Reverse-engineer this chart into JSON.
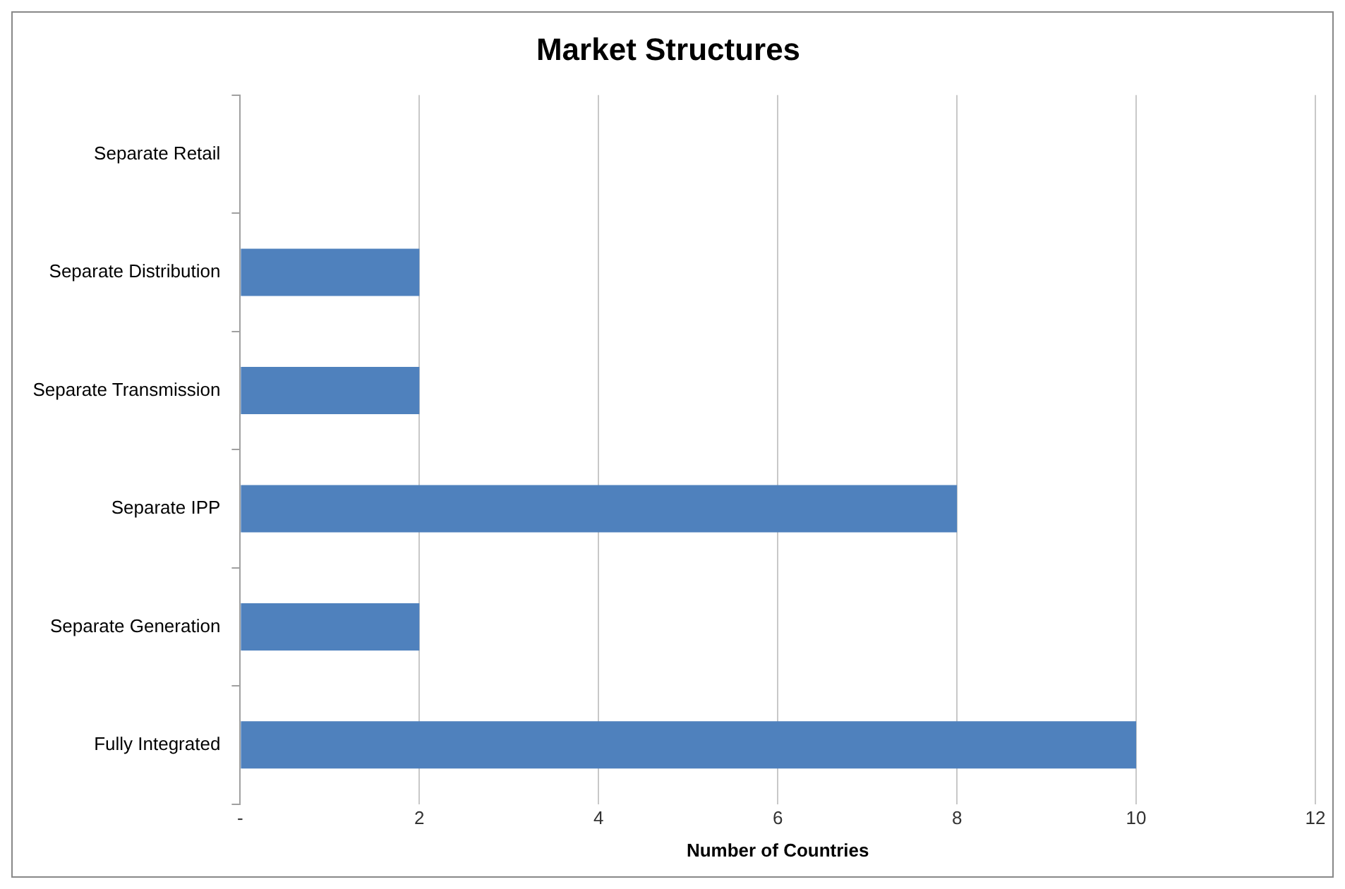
{
  "chart_data": {
    "type": "bar",
    "orientation": "horizontal",
    "title": "Market Structures",
    "xlabel": "Number of Countries",
    "categories": [
      "Separate Retail",
      "Separate Distribution",
      "Separate Transmission",
      "Separate IPP",
      "Separate Generation",
      "Fully Integrated"
    ],
    "values": [
      0,
      2,
      2,
      8,
      2,
      10
    ],
    "color": "#4f81bd",
    "xlim": [
      0,
      12
    ],
    "xticks": [
      {
        "value": 0,
        "label": "-"
      },
      2,
      4,
      6,
      8,
      10,
      12
    ],
    "grid": "x",
    "legend": false
  }
}
